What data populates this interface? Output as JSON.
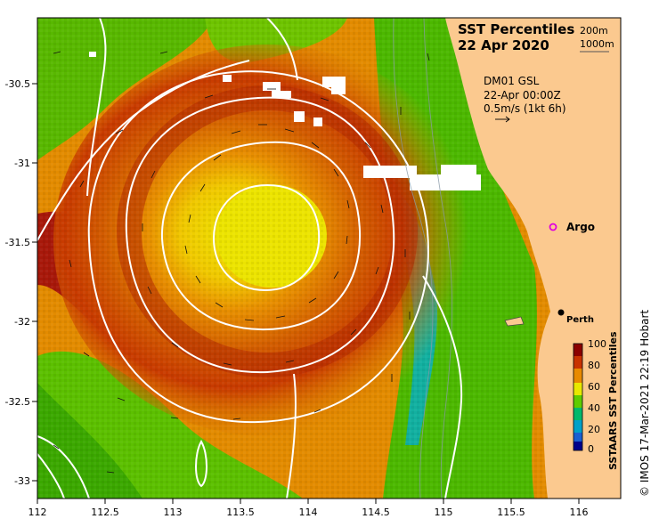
{
  "title": "SST Percentiles",
  "date": "22 Apr 2020",
  "depth_legend": [
    "200m",
    "1000m"
  ],
  "info": {
    "model": "DM01 GSL",
    "time": "22-Apr 00:00Z",
    "vector_scale": "0.5m/s (1kt 6h)"
  },
  "places": {
    "argo": "Argo",
    "perth": "Perth"
  },
  "axes": {
    "x_ticks": [
      "112",
      "112.5",
      "113",
      "113.5",
      "114",
      "114.5",
      "115",
      "115.5",
      "116"
    ],
    "y_ticks": [
      "-30.5",
      "-31",
      "-31.5",
      "-32",
      "-32.5",
      "-33"
    ]
  },
  "colorbar": {
    "title": "SSTAARS SST Percentiles",
    "ticks": [
      "100",
      "80",
      "60",
      "40",
      "20",
      "0"
    ],
    "colors": [
      "#8b0000",
      "#c83200",
      "#e88a00",
      "#e8e800",
      "#5fcc00",
      "#00b86b",
      "#00a0c8",
      "#1a5fd1",
      "#00008b"
    ]
  },
  "credit": "© IMOS 17-Mar-2021 22:19 Hobart",
  "colors": {
    "land": "#fbc98f",
    "ocean_hot": "#cc5a00",
    "ocean_warm": "#e38b00",
    "ocean_core": "#e9e400",
    "ocean_cool": "#3cb300",
    "contour": "#ffffff"
  }
}
